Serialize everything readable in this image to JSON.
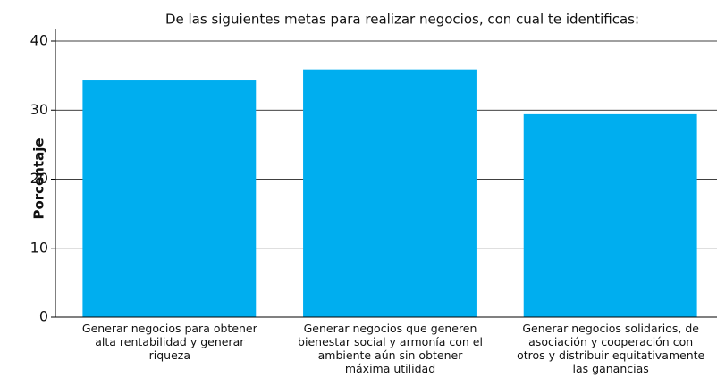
{
  "chart_data": {
    "type": "bar",
    "title": "De las siguientes metas para realizar negocios, con cual te identificas:",
    "y_label": "Porcentaje",
    "categories": [
      "Generar negocios para obtener alta rentabilidad y generar riqueza",
      "Generar negocios que generen bienestar social y armonía con el ambiente aún sin obtener máxima utilidad",
      "Generar negocios solidarios, de asociación y cooperación con otros y distribuir equitativamente las ganancias"
    ],
    "values": [
      34.3,
      35.9,
      29.4
    ],
    "color": "#00aeef",
    "ylim": [
      0,
      40
    ],
    "yticks": [
      0,
      10,
      20,
      30,
      40
    ],
    "grid": true
  }
}
